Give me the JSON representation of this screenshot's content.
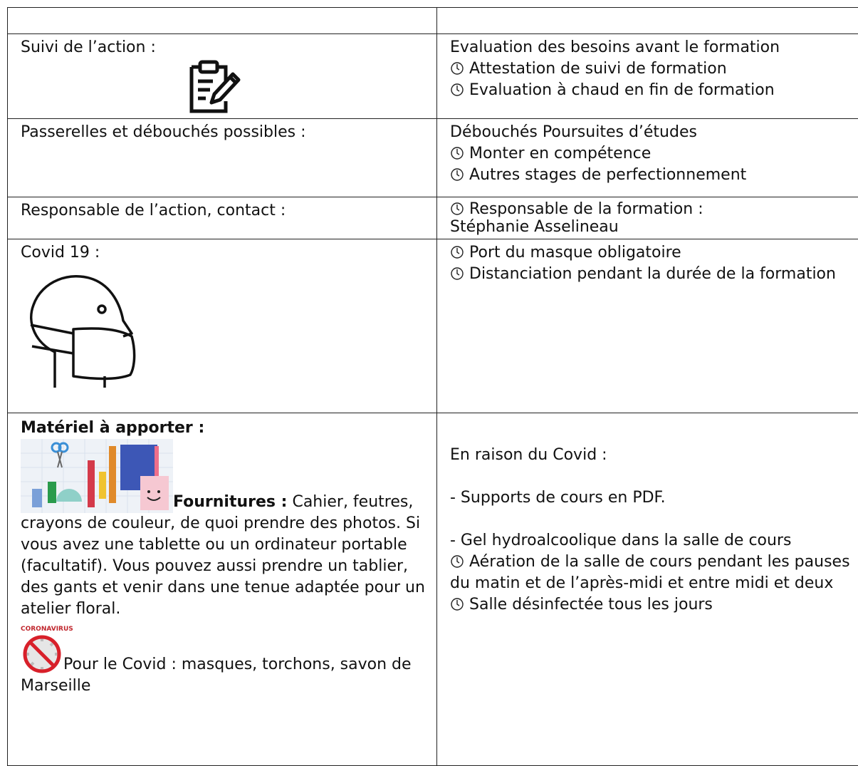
{
  "rows": [
    {
      "label": "Suivi de l’action :",
      "intro": "Evaluation des besoins avant le formation",
      "bullets": [
        "Attestation de suivi de formation",
        "Evaluation à chaud en fin de formation"
      ]
    },
    {
      "label": "Passerelles et débouchés possibles :",
      "intro": "Débouchés Poursuites d’études",
      "bullets": [
        "Monter en compétence",
        "Autres stages de perfectionnement"
      ]
    },
    {
      "label": "Responsable de l’action, contact :",
      "bullets": [
        "Responsable de la formation :"
      ],
      "bullets_cont": "Stéphanie Asselineau"
    },
    {
      "label": "Covid 19 :",
      "bullets": [
        "Port du masque obligatoire",
        "Distanciation pendant la durée de la formation"
      ]
    },
    {
      "left": {
        "heading": "Matériel à apporter :",
        "supplies_label": "Fournitures :",
        "supplies_text": "Cahier, feutres, crayons de couleur, de quoi prendre des photos. Si vous avez une tablette ou un ordinateur portable (facultatif). Vous pouvez aussi prendre un tablier, des gants et venir dans une tenue adaptée pour un atelier floral.",
        "image_caption": "CORONAVIRUS",
        "covid_text": "Pour le Covid : masques, torchons, savon de Marseille"
      },
      "right": {
        "intro": "En raison du Covid :",
        "items": [
          "- Supports de cours en PDF.",
          "- Gel hydroalcoolique dans la salle de cours"
        ],
        "bullets": [
          "Aération de la salle de cours pendant les pauses du matin et de l’après-midi et entre midi et deux",
          "Salle désinfectée tous les jours"
        ]
      }
    }
  ]
}
